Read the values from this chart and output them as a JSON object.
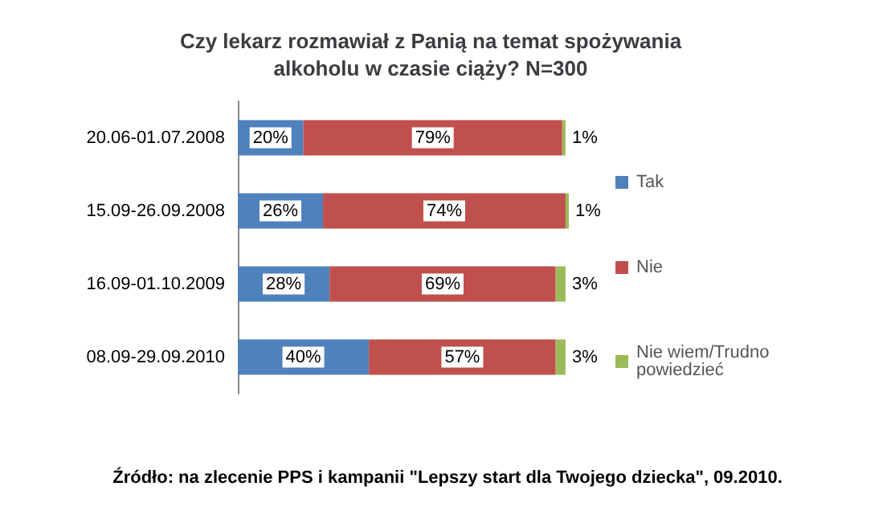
{
  "chart_data": {
    "type": "bar",
    "orientation": "horizontal",
    "stacked": true,
    "title": "Czy lekarz rozmawiał z Panią na temat spożywania\nalkoholu w czasie ciąży? N=300",
    "categories": [
      "20.06-01.07.2008",
      "15.09-26.09.2008",
      "16.09-01.10.2009",
      "08.09-29.09.2010"
    ],
    "series": [
      {
        "name": "Tak",
        "color": "#4f81bd",
        "values": [
          20,
          26,
          28,
          40
        ],
        "value_labels": [
          "20%",
          "26%",
          "28%",
          "40%"
        ]
      },
      {
        "name": "Nie",
        "color": "#c0504d",
        "values": [
          79,
          74,
          69,
          57
        ],
        "value_labels": [
          "79%",
          "74%",
          "69%",
          "57%"
        ]
      },
      {
        "name": "Nie wiem/Trudno powiedzieć",
        "color": "#9bbb59",
        "values": [
          1,
          1,
          3,
          3
        ],
        "value_labels": [
          "1%",
          "1%",
          "3%",
          "3%"
        ]
      }
    ],
    "legend": "right",
    "annotations": [
      "Źródło: na zlecenie PPS i kampanii \"Lepszy start dla Twojego dziecka\", 09.2010."
    ]
  }
}
